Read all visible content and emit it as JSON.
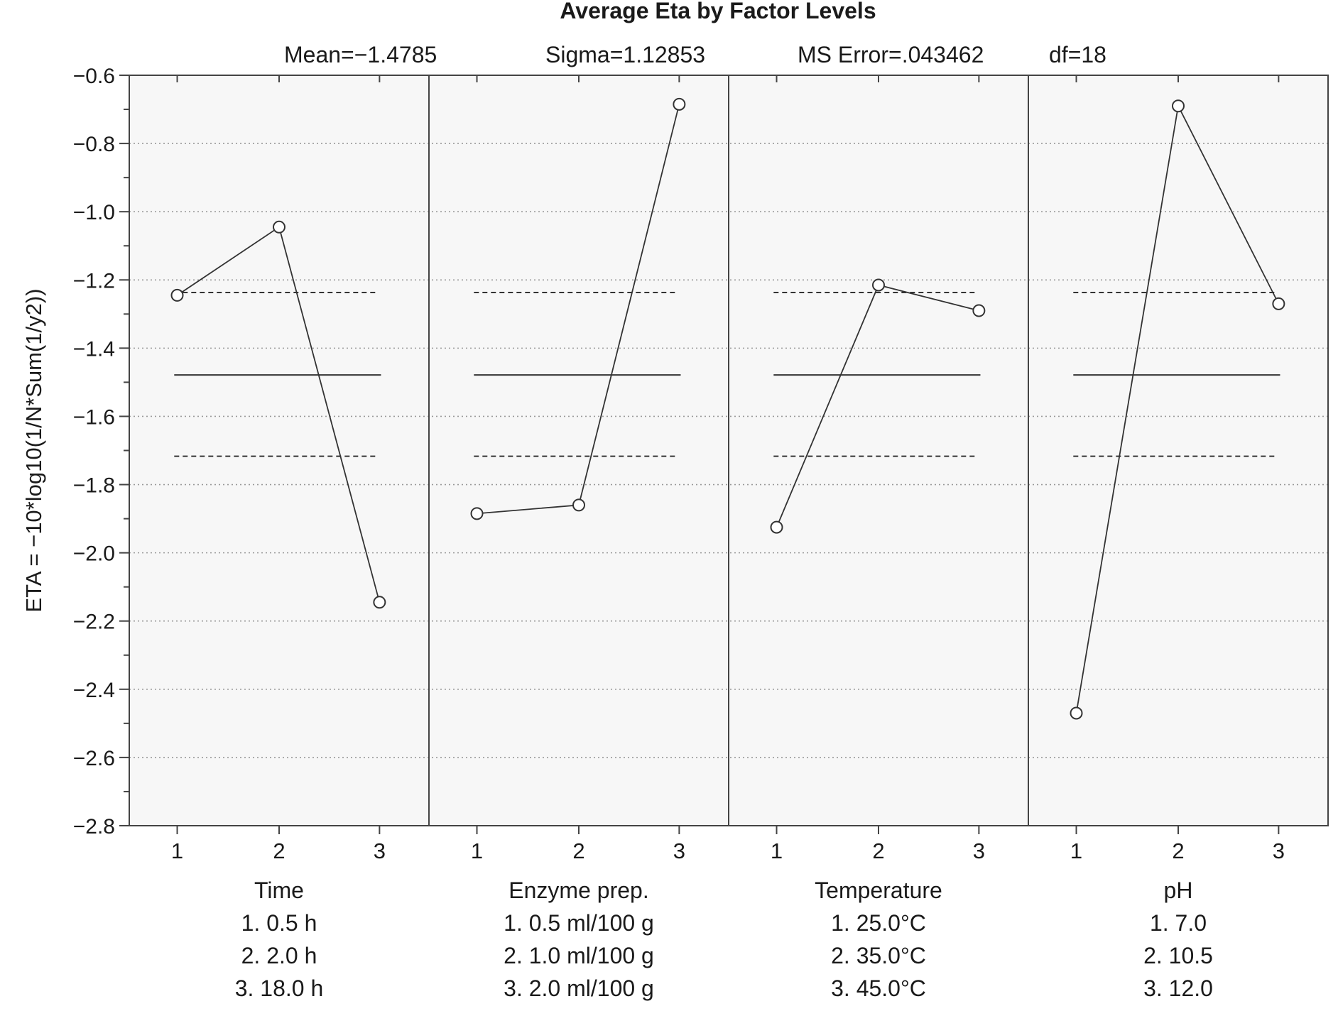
{
  "chart_data": {
    "type": "line",
    "title": "Average Eta by Factor Levels",
    "stats": {
      "mean": "Mean=−1.4785",
      "sigma": "Sigma=1.12853",
      "ms_error": "MS Error=.043462",
      "df": "df=18"
    },
    "ylabel": "ETA = −10*log10(1/N*Sum(1/y2))",
    "ylim": [
      -2.8,
      -0.6
    ],
    "yticks": [
      -0.6,
      -0.8,
      -1.0,
      -1.2,
      -1.4,
      -1.6,
      -1.8,
      -2.0,
      -2.2,
      -2.4,
      -2.6,
      -2.8
    ],
    "ytick_labels": [
      "−0.6",
      "−0.8",
      "−1.0",
      "−1.2",
      "−1.4",
      "−1.6",
      "−1.8",
      "−2.0",
      "−2.2",
      "−2.4",
      "−2.6",
      "−2.8"
    ],
    "grid": true,
    "reference_lines": {
      "mean": -1.4785,
      "upper": -1.237,
      "lower": -1.717
    },
    "factors": [
      {
        "name": "Time",
        "levels": [
          "1",
          "2",
          "3"
        ],
        "values": [
          -1.245,
          -1.045,
          -2.145
        ],
        "level_legend": [
          "1. 0.5 h",
          "2. 2.0 h",
          "3. 18.0 h"
        ]
      },
      {
        "name": "Enzyme prep.",
        "levels": [
          "1",
          "2",
          "3"
        ],
        "values": [
          -1.885,
          -1.86,
          -0.685
        ],
        "level_legend": [
          "1. 0.5 ml/100 g",
          "2. 1.0 ml/100 g",
          "3. 2.0 ml/100 g"
        ]
      },
      {
        "name": "Temperature",
        "levels": [
          "1",
          "2",
          "3"
        ],
        "values": [
          -1.925,
          -1.215,
          -1.29
        ],
        "level_legend": [
          "1. 25.0°C",
          "2. 35.0°C",
          "3. 45.0°C"
        ]
      },
      {
        "name": "pH",
        "levels": [
          "1",
          "2",
          "3"
        ],
        "values": [
          -2.47,
          -0.69,
          -1.27
        ],
        "level_legend": [
          "1. 7.0",
          "2. 10.5",
          "3. 12.0"
        ]
      }
    ],
    "colors": {
      "line": "#333333",
      "frame": "#444444",
      "grid": "#9a9a9a",
      "marker_fill": "#ffffff"
    }
  }
}
